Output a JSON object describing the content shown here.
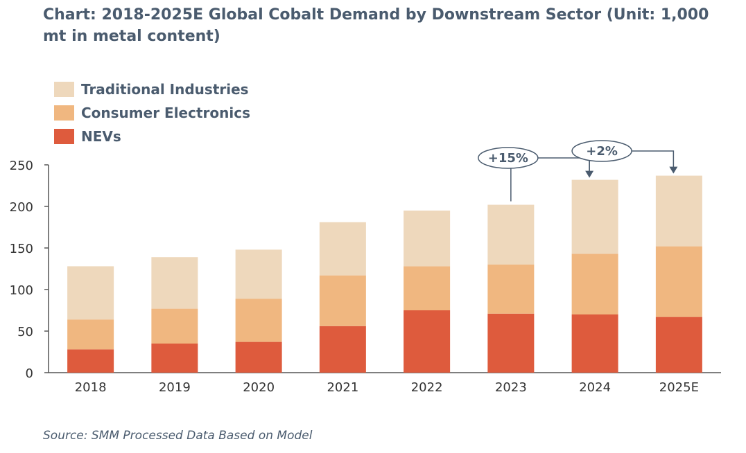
{
  "title": "Chart: 2018-2025E Global Cobalt Demand by Downstream Sector (Unit: 1,000 mt in metal content)",
  "source": "Source: SMM Processed Data Based on Model",
  "colors": {
    "traditional": "#eed8bc",
    "consumer": "#f0b780",
    "nevs": "#de5b3d",
    "axis": "#4a5b6e",
    "text": "#4a5b6e"
  },
  "chart_data": {
    "type": "bar",
    "stacked": true,
    "title": "Chart: 2018-2025E Global Cobalt Demand by Downstream Sector (Unit: 1,000 mt in metal content)",
    "categories": [
      "2018",
      "2019",
      "2020",
      "2021",
      "2022",
      "2023",
      "2024",
      "2025E"
    ],
    "series": [
      {
        "name": "NEVs",
        "color": "#de5b3d",
        "values": [
          28,
          35,
          37,
          56,
          75,
          71,
          70,
          67
        ]
      },
      {
        "name": "Consumer Electronics",
        "color": "#f0b780",
        "values": [
          36,
          42,
          52,
          61,
          53,
          59,
          73,
          85
        ]
      },
      {
        "name": "Traditional Industries",
        "color": "#eed8bc",
        "values": [
          64,
          62,
          59,
          64,
          67,
          72,
          89,
          85
        ]
      }
    ],
    "legend_order": [
      "Traditional Industries",
      "Consumer Electronics",
      "NEVs"
    ],
    "legend_position": "top-left",
    "ylim": [
      0,
      250
    ],
    "yticks": [
      0,
      50,
      100,
      150,
      200,
      250
    ],
    "grid": false,
    "annotations": [
      {
        "text": "+15%",
        "from": "2023",
        "to": "2024"
      },
      {
        "text": "+2%",
        "from": "2024",
        "to": "2025E"
      }
    ]
  }
}
